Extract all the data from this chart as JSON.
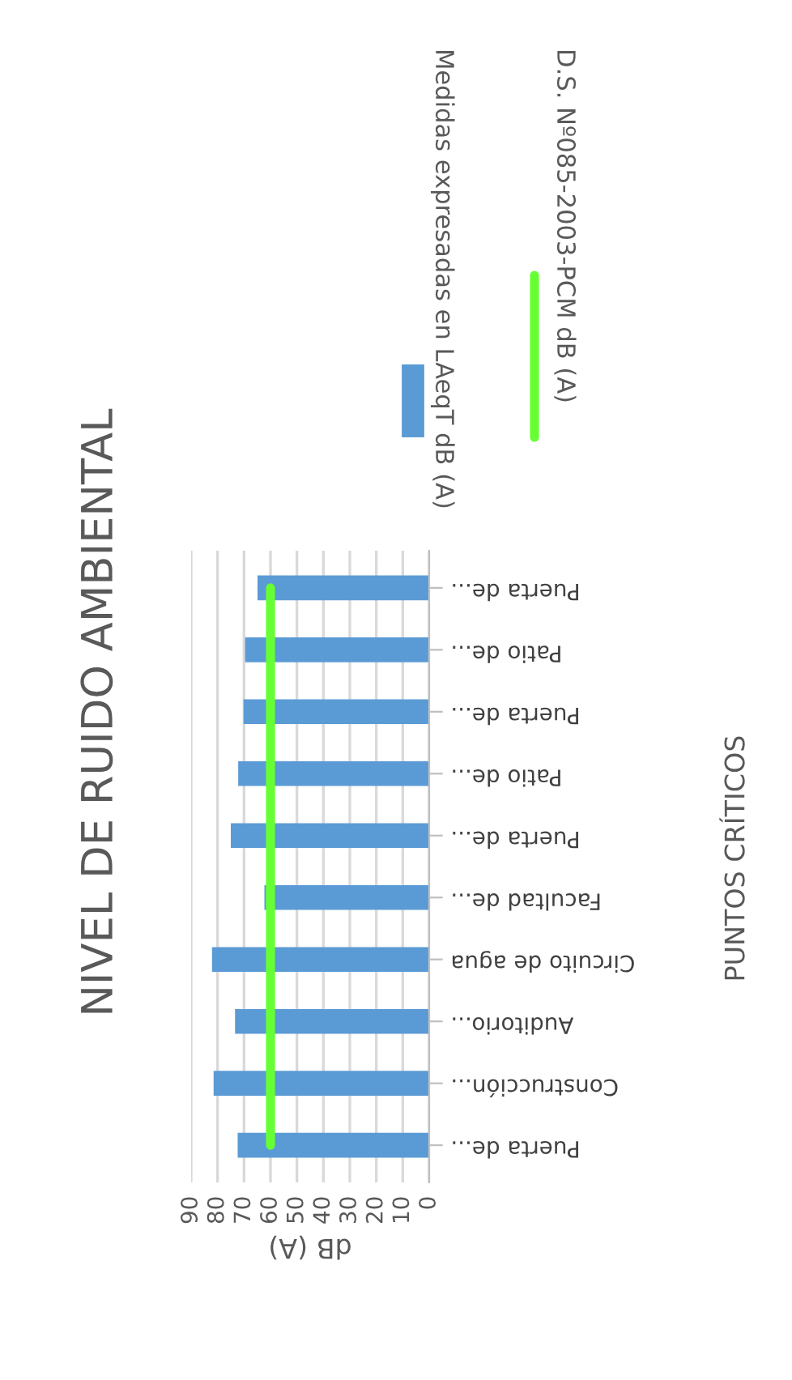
{
  "chart_data": {
    "type": "bar",
    "orientation": "horizontal",
    "title": "NIVEL DE RUIDO AMBIENTAL",
    "xlabel": "dB (A)",
    "annotations": [
      "PUNTOS CRÍTICOS"
    ],
    "categories": [
      "Puerta de...",
      "Patio de...",
      "Puerta de...",
      "Patio de...",
      "Puerta de...",
      "Facultad de...",
      "Circuito de agua",
      "Auditorio...",
      "Construcción...",
      "Puerta de..."
    ],
    "series": [
      {
        "name": "Medidas expresadas en LAeqT dB (A)",
        "color": "#5b9bd5",
        "values": [
          64.9,
          69.6,
          70.2,
          72.2,
          75,
          62.3,
          82.1,
          73.4,
          81.5,
          72.4
        ]
      },
      {
        "name": "D.S. Nº085-2003-PCM dB (A)",
        "type": "line",
        "color": "#66ff33",
        "values": [
          60,
          60,
          60,
          60,
          60,
          60,
          60,
          60,
          60,
          60
        ]
      }
    ],
    "xlim": [
      90,
      0
    ],
    "xticks": [
      90,
      80,
      70,
      60,
      50,
      40,
      30,
      20,
      10,
      0
    ],
    "grid": "x",
    "legend": "right"
  }
}
